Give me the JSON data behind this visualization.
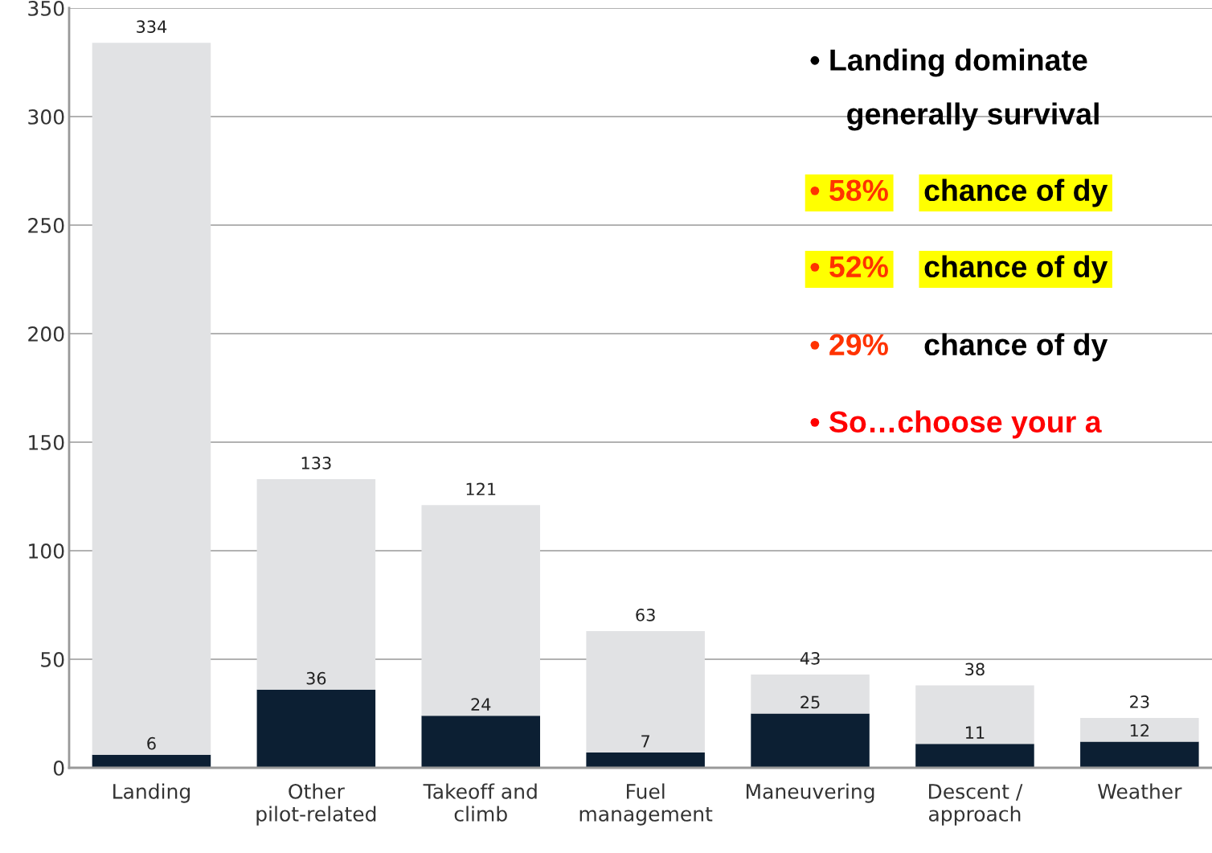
{
  "chart_data": {
    "type": "bar",
    "stacked": true,
    "categories": [
      "Landing",
      "Other\npilot-related",
      "Takeoff and\nclimb",
      "Fuel\nmanagement",
      "Maneuvering",
      "Descent /\napproach",
      "Weather"
    ],
    "series": [
      {
        "color": "#0c1f33",
        "values": [
          6,
          36,
          24,
          7,
          25,
          11,
          12
        ],
        "value_labels": [
          "6",
          "36",
          "24",
          "7",
          "25",
          "11",
          "12"
        ]
      },
      {
        "color": "#e1e2e4",
        "values": [
          328,
          97,
          97,
          56,
          18,
          27,
          11
        ]
      }
    ],
    "totals": [
      "334",
      "133",
      "121",
      "63",
      "43",
      "38",
      "23"
    ],
    "ylim": [
      0,
      350
    ],
    "yticks": [
      0,
      50,
      100,
      150,
      200,
      250,
      300,
      350
    ],
    "grid": "y",
    "legend": false,
    "annotations": [
      "• Landing dominate",
      "generally survival",
      "• 58%",
      "chance of dy",
      "• 52%",
      "chance of dy",
      "• 29%",
      "chance of dy",
      "• So…choose your a"
    ]
  }
}
